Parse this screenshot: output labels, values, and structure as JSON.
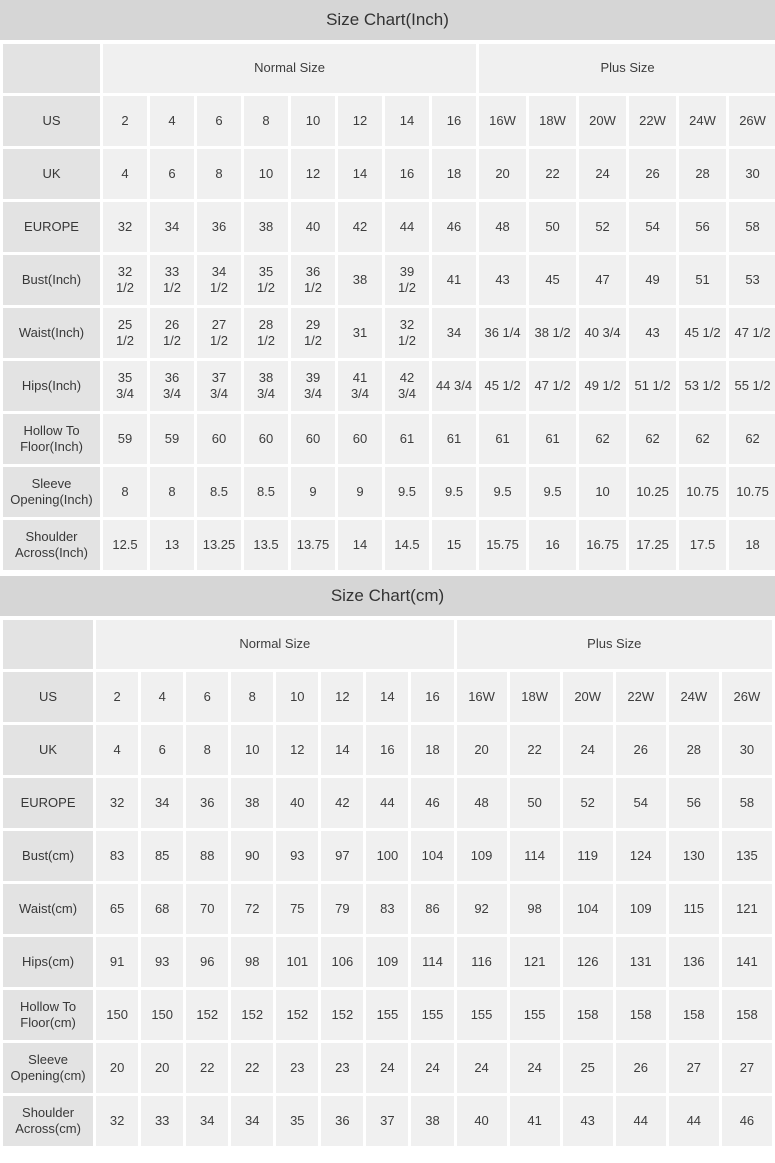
{
  "colors": {
    "title_bar": "#d6d6d6",
    "label_cell": "#e3e3e3",
    "data_cell": "#f0f0f0",
    "text": "#3d3d3d"
  },
  "tables": [
    {
      "id": "inch",
      "title": "Size Chart(Inch)",
      "group_headers": [
        {
          "label": "",
          "span": 1
        },
        {
          "label": "Normal Size",
          "span": 8
        },
        {
          "label": "Plus Size",
          "span": 6
        }
      ],
      "normal_col_count": 8,
      "plus_col_count": 6,
      "rows": [
        {
          "label": "US",
          "values": [
            "2",
            "4",
            "6",
            "8",
            "10",
            "12",
            "14",
            "16",
            "16W",
            "18W",
            "20W",
            "22W",
            "24W",
            "26W"
          ]
        },
        {
          "label": "UK",
          "values": [
            "4",
            "6",
            "8",
            "10",
            "12",
            "14",
            "16",
            "18",
            "20",
            "22",
            "24",
            "26",
            "28",
            "30"
          ]
        },
        {
          "label": "EUROPE",
          "values": [
            "32",
            "34",
            "36",
            "38",
            "40",
            "42",
            "44",
            "46",
            "48",
            "50",
            "52",
            "54",
            "56",
            "58"
          ]
        },
        {
          "label": "Bust(Inch)",
          "values": [
            "32\n1/2",
            "33\n1/2",
            "34\n1/2",
            "35\n1/2",
            "36\n1/2",
            "38",
            "39\n1/2",
            "41",
            "43",
            "45",
            "47",
            "49",
            "51",
            "53"
          ]
        },
        {
          "label": "Waist(Inch)",
          "values": [
            "25\n1/2",
            "26\n1/2",
            "27\n1/2",
            "28\n1/2",
            "29\n1/2",
            "31",
            "32\n1/2",
            "34",
            "36 1/4",
            "38 1/2",
            "40 3/4",
            "43",
            "45 1/2",
            "47 1/2"
          ]
        },
        {
          "label": "Hips(Inch)",
          "values": [
            "35\n3/4",
            "36\n3/4",
            "37\n3/4",
            "38\n3/4",
            "39\n3/4",
            "41\n3/4",
            "42\n3/4",
            "44 3/4",
            "45 1/2",
            "47 1/2",
            "49 1/2",
            "51 1/2",
            "53 1/2",
            "55 1/2"
          ]
        },
        {
          "label": "Hollow To Floor(Inch)",
          "values": [
            "59",
            "59",
            "60",
            "60",
            "60",
            "60",
            "61",
            "61",
            "61",
            "61",
            "62",
            "62",
            "62",
            "62"
          ]
        },
        {
          "label": "Sleeve Opening(Inch)",
          "values": [
            "8",
            "8",
            "8.5",
            "8.5",
            "9",
            "9",
            "9.5",
            "9.5",
            "9.5",
            "9.5",
            "10",
            "10.25",
            "10.75",
            "10.75"
          ]
        },
        {
          "label": "Shoulder Across(Inch)",
          "values": [
            "12.5",
            "13",
            "13.25",
            "13.5",
            "13.75",
            "14",
            "14.5",
            "15",
            "15.75",
            "16",
            "16.75",
            "17.25",
            "17.5",
            "18"
          ]
        }
      ]
    },
    {
      "id": "cm",
      "title": "Size Chart(cm)",
      "group_headers": [
        {
          "label": "",
          "span": 1
        },
        {
          "label": "Normal Size",
          "span": 8
        },
        {
          "label": "Plus Size",
          "span": 6
        }
      ],
      "normal_col_count": 8,
      "plus_col_count": 6,
      "rows": [
        {
          "label": "US",
          "values": [
            "2",
            "4",
            "6",
            "8",
            "10",
            "12",
            "14",
            "16",
            "16W",
            "18W",
            "20W",
            "22W",
            "24W",
            "26W"
          ]
        },
        {
          "label": "UK",
          "values": [
            "4",
            "6",
            "8",
            "10",
            "12",
            "14",
            "16",
            "18",
            "20",
            "22",
            "24",
            "26",
            "28",
            "30"
          ]
        },
        {
          "label": "EUROPE",
          "values": [
            "32",
            "34",
            "36",
            "38",
            "40",
            "42",
            "44",
            "46",
            "48",
            "50",
            "52",
            "54",
            "56",
            "58"
          ]
        },
        {
          "label": "Bust(cm)",
          "values": [
            "83",
            "85",
            "88",
            "90",
            "93",
            "97",
            "100",
            "104",
            "109",
            "114",
            "119",
            "124",
            "130",
            "135"
          ]
        },
        {
          "label": "Waist(cm)",
          "values": [
            "65",
            "68",
            "70",
            "72",
            "75",
            "79",
            "83",
            "86",
            "92",
            "98",
            "104",
            "109",
            "115",
            "121"
          ]
        },
        {
          "label": "Hips(cm)",
          "values": [
            "91",
            "93",
            "96",
            "98",
            "101",
            "106",
            "109",
            "114",
            "116",
            "121",
            "126",
            "131",
            "136",
            "141"
          ]
        },
        {
          "label": "Hollow To Floor(cm)",
          "values": [
            "150",
            "150",
            "152",
            "152",
            "152",
            "152",
            "155",
            "155",
            "155",
            "155",
            "158",
            "158",
            "158",
            "158"
          ]
        },
        {
          "label": "Sleeve Opening(cm)",
          "values": [
            "20",
            "20",
            "22",
            "22",
            "23",
            "23",
            "24",
            "24",
            "24",
            "24",
            "25",
            "26",
            "27",
            "27"
          ]
        },
        {
          "label": "Shoulder Across(cm)",
          "values": [
            "32",
            "33",
            "34",
            "34",
            "35",
            "36",
            "37",
            "38",
            "40",
            "41",
            "43",
            "44",
            "44",
            "46"
          ]
        }
      ]
    }
  ]
}
